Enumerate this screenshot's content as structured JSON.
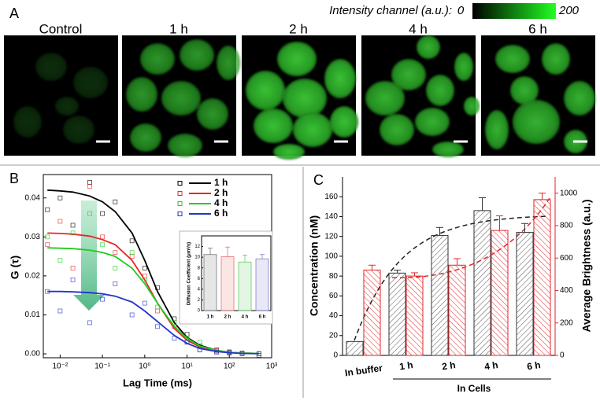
{
  "images": {
    "label": "A",
    "colorbar": {
      "title": "Intensity channel (a.u.):",
      "min": 0,
      "max": 200
    },
    "titles": [
      "Control",
      "1 h",
      "2 h",
      "4 h",
      "6 h"
    ]
  },
  "chart_data": [
    {
      "type": "line",
      "panel_label": "B",
      "ylabel": "G (τ)",
      "xlabel": "Lag Time (ms)",
      "log_x": true,
      "x": [
        0.005,
        0.01,
        0.02,
        0.05,
        0.1,
        0.2,
        0.5,
        1,
        2,
        5,
        10,
        20,
        50,
        100,
        200,
        500
      ],
      "xlim": [
        0.004,
        1000
      ],
      "xticks": [
        {
          "value": 0.01,
          "label": "10⁻²"
        },
        {
          "value": 0.1,
          "label": "10⁻¹"
        },
        {
          "value": 1,
          "label": "10⁰"
        },
        {
          "value": 10,
          "label": "10¹"
        },
        {
          "value": 100,
          "label": "10²"
        },
        {
          "value": 1000,
          "label": "10³"
        }
      ],
      "ylim": [
        -0.001,
        0.046
      ],
      "yticks": [
        {
          "value": 0,
          "label": "0.00"
        },
        0.01,
        0.02,
        0.03,
        0.04
      ],
      "series": [
        {
          "name": "1 h",
          "color": "#000000",
          "values": [
            0.037,
            0.04,
            0.033,
            0.044,
            0.036,
            0.039,
            0.029,
            0.022,
            0.017,
            0.009,
            0.005,
            0.002,
            0.001,
            0.0005,
            0.0002,
            -0.0004
          ],
          "fit": [
            0.042,
            0.0418,
            0.0415,
            0.0405,
            0.039,
            0.0365,
            0.031,
            0.024,
            0.016,
            0.008,
            0.0042,
            0.0022,
            0.0009,
            0.0004,
            0.0002,
            0.0001
          ]
        },
        {
          "name": "2 h",
          "color": "#e8262a",
          "values": [
            0.028,
            0.034,
            0.022,
            0.043,
            0.03,
            0.026,
            0.025,
            0.02,
            0.011,
            0.007,
            0.003,
            0.001,
            0.0008,
            0.0002,
            0.0001,
            0.0
          ],
          "fit": [
            0.031,
            0.0309,
            0.0307,
            0.0302,
            0.0293,
            0.028,
            0.024,
            0.019,
            0.013,
            0.0065,
            0.0035,
            0.0018,
            0.0008,
            0.0004,
            0.0002,
            0.0001
          ]
        },
        {
          "name": "4 h",
          "color": "#22cc22",
          "values": [
            0.03,
            0.024,
            0.031,
            0.036,
            0.028,
            0.022,
            0.026,
            0.019,
            0.012,
            0.008,
            0.004,
            0.003,
            0.0006,
            0.0003,
            0.0,
            0.0001
          ],
          "fit": [
            0.0272,
            0.0271,
            0.027,
            0.0266,
            0.026,
            0.025,
            0.022,
            0.018,
            0.013,
            0.007,
            0.004,
            0.002,
            0.0009,
            0.0004,
            0.0002,
            0.0001
          ]
        },
        {
          "name": "6 h",
          "color": "#2233cc",
          "values": [
            0.016,
            0.011,
            0.019,
            0.008,
            0.014,
            0.018,
            0.01,
            0.013,
            0.007,
            0.004,
            0.003,
            0.001,
            0.0004,
            0.0003,
            0.0001,
            0.0
          ],
          "fit": [
            0.016,
            0.016,
            0.0159,
            0.0157,
            0.0154,
            0.0148,
            0.0133,
            0.011,
            0.0083,
            0.0047,
            0.0027,
            0.0014,
            0.0006,
            0.0003,
            0.0001,
            5e-05
          ]
        }
      ]
    },
    {
      "type": "bar",
      "ylabel": "Diffusion Coefficient (μm²/s)",
      "categories": [
        "1 h",
        "2 h",
        "4 h",
        "6 h"
      ],
      "values": [
        10.5,
        10.1,
        9.1,
        9.7
      ],
      "errors": [
        1.2,
        1.8,
        1.3,
        0.8
      ],
      "colors": [
        "#777777",
        "#e87070",
        "#66cc66",
        "#8080cc"
      ],
      "ylim": [
        0,
        14
      ],
      "yticks": [
        0,
        2,
        4,
        6,
        8,
        10,
        12
      ]
    },
    {
      "type": "bar",
      "panel_label": "C",
      "ylabel": "Concentration (nM)",
      "y2label": "Average Brightness (a.u.)",
      "categories": [
        "In buffer",
        "1 h",
        "2 h",
        "4 h",
        "6 h"
      ],
      "group_label": "In Cells",
      "ylim": [
        0,
        180
      ],
      "yticks": [
        0,
        20,
        40,
        60,
        80,
        100,
        120,
        140,
        160
      ],
      "y2lim": [
        0,
        1100
      ],
      "y2ticks": [
        0,
        200,
        400,
        600,
        800,
        1000
      ],
      "series": [
        {
          "color": "#333333",
          "values": [
            14,
            83,
            121,
            146,
            124
          ],
          "errors": [
            0,
            3,
            8,
            13,
            9
          ]
        },
        {
          "color": "#e0262a",
          "axis": "y2",
          "values": [
            526,
            489,
            556,
            770,
            960
          ],
          "errors": [
            30,
            20,
            40,
            90,
            40
          ]
        }
      ]
    }
  ]
}
